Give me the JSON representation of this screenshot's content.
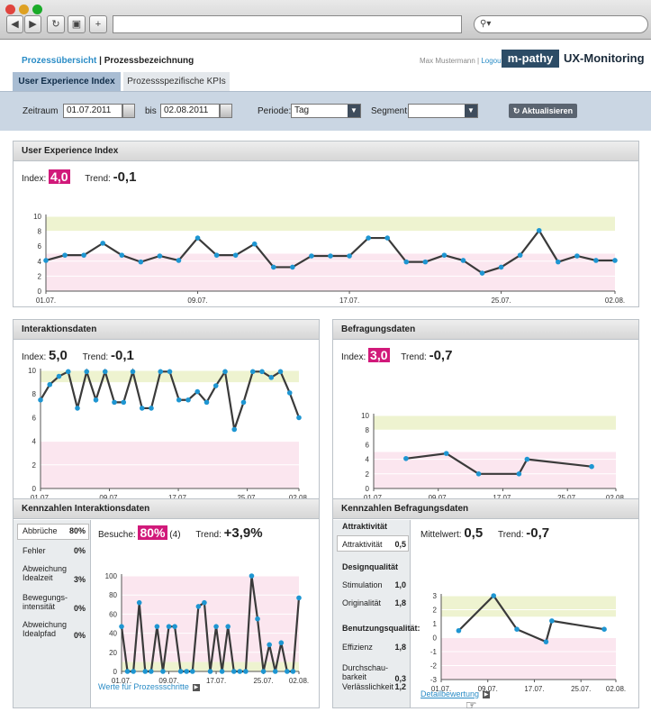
{
  "header": {
    "crumb_link": "Prozessübersicht",
    "crumb_sep": " | ",
    "crumb_current": "Prozessbezeichnung",
    "user_name": "Max Mustermann",
    "user_sep": " | ",
    "logout": "Logout",
    "logo_brand": "m-pathy",
    "logo_product": "UX-Monitoring"
  },
  "tabs": [
    {
      "label": "User Experience Index",
      "active": true
    },
    {
      "label": "Prozessspezifische KPIs",
      "active": false
    }
  ],
  "filters": {
    "zeitraum_label": "Zeitraum",
    "from": "01.07.2011",
    "bis_label": "bis",
    "to": "02.08.2011",
    "periode_label": "Periode:",
    "periode_value": "Tag",
    "segment_label": "Segment:",
    "segment_value": "",
    "refresh": "Aktualisieren"
  },
  "ux": {
    "title": "User Experience Index",
    "index_label": "Index:",
    "index_value": "4,0",
    "trend_label": "Trend:",
    "trend_value": "-0,1"
  },
  "inter": {
    "title": "Interaktionsdaten",
    "index_label": "Index:",
    "index_value": "5,0",
    "trend_label": "Trend:",
    "trend_value": "-0,1"
  },
  "bef": {
    "title": "Befragungsdaten",
    "index_label": "Index:",
    "index_value": "3,0",
    "trend_label": "Trend:",
    "trend_value": "-0,7"
  },
  "kint": {
    "title": "Kennzahlen Interaktionsdaten",
    "items": [
      {
        "l1": "Abbrüche",
        "l2": "",
        "v": "80%"
      },
      {
        "l1": "Fehler",
        "l2": "",
        "v": "0%"
      },
      {
        "l1": "Abweichung",
        "l2": "Idealzeit",
        "v": "3%"
      },
      {
        "l1": "Bewegungs-",
        "l2": "intensität",
        "v": "0%"
      },
      {
        "l1": "Abweichung",
        "l2": "Idealpfad",
        "v": "0%"
      }
    ],
    "besuche_label": "Besuche:",
    "besuche_value": "80%",
    "besuche_count": "(4)",
    "trend_label": "Trend:",
    "trend_value": "+3,9%",
    "link": "Werte für Prozessschritte"
  },
  "kbef": {
    "title": "Kennzahlen Befragungsdaten",
    "sections": [
      {
        "header": "Attraktivität",
        "items": [
          {
            "l1": "Attraktivität",
            "l2": "",
            "v": "0,5"
          }
        ]
      },
      {
        "header": "Designqualität",
        "items": [
          {
            "l1": "Stimulation",
            "l2": "",
            "v": "1,0"
          },
          {
            "l1": "Originalität",
            "l2": "",
            "v": "1,8"
          }
        ]
      },
      {
        "header": "Benutzungsqualität:",
        "items": [
          {
            "l1": "Effizienz",
            "l2": "",
            "v": "1,8"
          },
          {
            "l1": "Durchschau-",
            "l2": "barkeit",
            "v": "0,3"
          },
          {
            "l1": "Verlässlichkeit",
            "l2": "",
            "v": "1,2"
          }
        ]
      }
    ],
    "mittel_label": "Mittelwert:",
    "mittel_value": "0,5",
    "trend_label": "Trend:",
    "trend_value": "-0,7",
    "link": "Detailbewertung"
  },
  "chart_data": [
    {
      "type": "line",
      "name": "ux",
      "x_labels": [
        "01.07.",
        "09.07.",
        "17.07.",
        "25.07.",
        "02.08."
      ],
      "ylim": [
        0,
        10
      ],
      "yticks": [
        0,
        2,
        4,
        6,
        8,
        10
      ],
      "bands": [
        {
          "from": 8,
          "to": 10,
          "color": "#eef3d0"
        },
        {
          "from": 0,
          "to": 5,
          "color": "#fbe6ef"
        }
      ],
      "values": [
        4.1,
        4.8,
        4.8,
        6.4,
        4.8,
        3.9,
        4.7,
        4.1,
        7.1,
        4.8,
        4.8,
        6.3,
        3.2,
        3.2,
        4.7,
        4.7,
        4.7,
        7.1,
        7.1,
        3.9,
        3.9,
        4.8,
        4.1,
        2.4,
        3.2,
        4.8,
        8.1,
        3.9,
        4.7,
        4.1,
        4.1
      ]
    },
    {
      "type": "line",
      "name": "inter",
      "x_labels": [
        "01.07.",
        "09.07.",
        "17.07.",
        "25.07.",
        "02.08."
      ],
      "ylim": [
        0,
        10
      ],
      "yticks": [
        0,
        2,
        4,
        6,
        8,
        10
      ],
      "bands": [
        {
          "from": 9,
          "to": 10,
          "color": "#eef3d0"
        },
        {
          "from": 0,
          "to": 4,
          "color": "#fbe6ef"
        }
      ],
      "values": [
        7.5,
        8.8,
        9.5,
        9.9,
        6.8,
        9.9,
        7.5,
        9.9,
        7.3,
        7.3,
        9.9,
        6.8,
        6.8,
        9.9,
        9.9,
        7.5,
        7.5,
        8.2,
        7.3,
        8.7,
        9.9,
        5.0,
        7.3,
        9.9,
        9.9,
        9.4,
        9.9,
        8.1,
        6.0
      ]
    },
    {
      "type": "line",
      "name": "bef",
      "x_labels": [
        "01.07.",
        "09.07.",
        "17.07.",
        "25.07.",
        "02.08."
      ],
      "ylim": [
        0,
        10
      ],
      "yticks": [
        0,
        2,
        4,
        6,
        8,
        10
      ],
      "bands": [
        {
          "from": 8,
          "to": 10,
          "color": "#eef3d0"
        },
        {
          "from": 0,
          "to": 5,
          "color": "#fbe6ef"
        }
      ],
      "points": [
        [
          4,
          4.1
        ],
        [
          9,
          4.8
        ],
        [
          13,
          2.0
        ],
        [
          18,
          2.0
        ],
        [
          19,
          4.0
        ],
        [
          27,
          3.0
        ]
      ]
    },
    {
      "type": "line",
      "name": "besuche",
      "x_labels": [
        "01.07.",
        "09.07.",
        "17.07.",
        "25.07.",
        "02.08."
      ],
      "ylim": [
        0,
        100
      ],
      "yticks": [
        0,
        20,
        40,
        60,
        80,
        100
      ],
      "bands": [
        {
          "from": 0,
          "to": 10,
          "color": "#eef3d0"
        },
        {
          "from": 10,
          "to": 100,
          "color": "#fbe6ef"
        }
      ],
      "values": [
        47,
        0,
        0,
        72,
        0,
        0,
        47,
        0,
        47,
        47,
        0,
        0,
        0,
        68,
        72,
        0,
        47,
        0,
        47,
        0,
        0,
        0,
        100,
        55,
        0,
        28,
        0,
        30,
        0,
        0,
        77
      ]
    },
    {
      "type": "line",
      "name": "kbef",
      "x_labels": [
        "01.07.",
        "09.07.",
        "17.07.",
        "25.07.",
        "02.08."
      ],
      "ylim": [
        -3,
        3
      ],
      "yticks": [
        -3,
        -2,
        -1,
        0,
        1,
        2,
        3
      ],
      "bands": [
        {
          "from": 1.5,
          "to": 3,
          "color": "#eef3d0"
        },
        {
          "from": -3,
          "to": 0,
          "color": "#fbe6ef"
        }
      ],
      "points": [
        [
          3,
          0.5
        ],
        [
          9,
          3.0
        ],
        [
          13,
          0.6
        ],
        [
          18,
          -0.3
        ],
        [
          19,
          1.2
        ],
        [
          28,
          0.6
        ]
      ]
    }
  ]
}
